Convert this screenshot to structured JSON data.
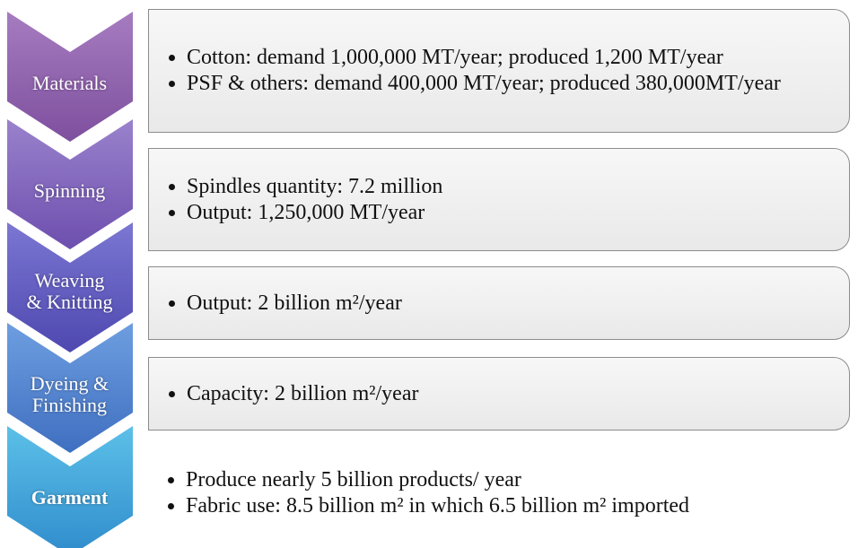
{
  "stages": [
    {
      "label": [
        "Materials"
      ],
      "bullets": [
        "Cotton: demand 1,000,000 MT/year; produced 1,200 MT/year",
        "PSF & others: demand 400,000 MT/year; produced 380,000MT/year"
      ]
    },
    {
      "label": [
        "Spinning"
      ],
      "bullets": [
        "Spindles quantity: 7.2 million",
        "Output: 1,250,000 MT/year"
      ]
    },
    {
      "label": [
        "Weaving",
        "& Knitting"
      ],
      "bullets": [
        "Output: 2 billion m²/year"
      ]
    },
    {
      "label": [
        "Dyeing &",
        "Finishing"
      ],
      "bullets": [
        "Capacity: 2 billion m²/year"
      ]
    },
    {
      "label": [
        "Garment"
      ],
      "bullets": [
        "Produce nearly 5 billion products/ year",
        "Fabric use: 8.5 billion m² in which 6.5 billion m² imported"
      ]
    }
  ]
}
